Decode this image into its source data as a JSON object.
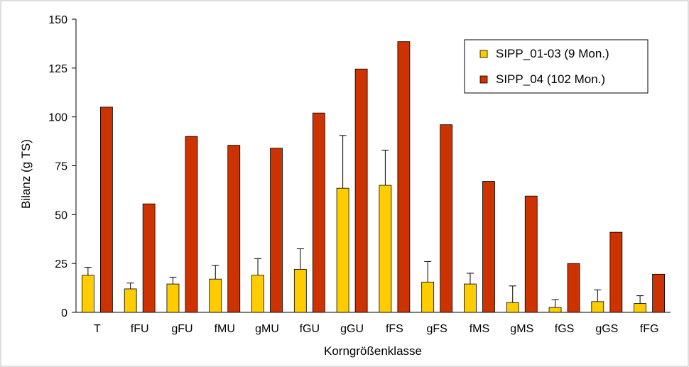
{
  "chart_data": {
    "type": "bar",
    "title": "",
    "xlabel": "Korngrößenklasse",
    "ylabel": "Bilanz (g TS)",
    "ylim": [
      0,
      150
    ],
    "yticks": [
      0,
      25,
      50,
      75,
      100,
      125,
      150
    ],
    "ytick_labels": [
      "0",
      "25",
      "50",
      "75",
      "100",
      "125",
      "150"
    ],
    "grid": false,
    "legend_position": "top-right",
    "categories": [
      "T",
      "fFU",
      "gFU",
      "fMU",
      "gMU",
      "fGU",
      "gGU",
      "fFS",
      "gFS",
      "fMS",
      "gMS",
      "fGS",
      "gGS",
      "fFG"
    ],
    "series": [
      {
        "name": "SIPP_01-03 (9 Mon.)",
        "color": "#FFCC00",
        "values": [
          19,
          12,
          14.5,
          17,
          19,
          22,
          63.5,
          65,
          15.5,
          14.5,
          5,
          2.5,
          5.5,
          4.5
        ],
        "error_upper": [
          23,
          15,
          18,
          24,
          27.5,
          32.5,
          90.5,
          83,
          26,
          20,
          13.5,
          6.5,
          11.5,
          8.5
        ]
      },
      {
        "name": "SIPP_04 (102 Mon.)",
        "color": "#CC3300",
        "values": [
          105,
          55.5,
          90,
          85.5,
          84,
          102,
          124.5,
          138.5,
          96,
          67,
          59.5,
          25,
          41,
          19.5
        ]
      }
    ]
  }
}
